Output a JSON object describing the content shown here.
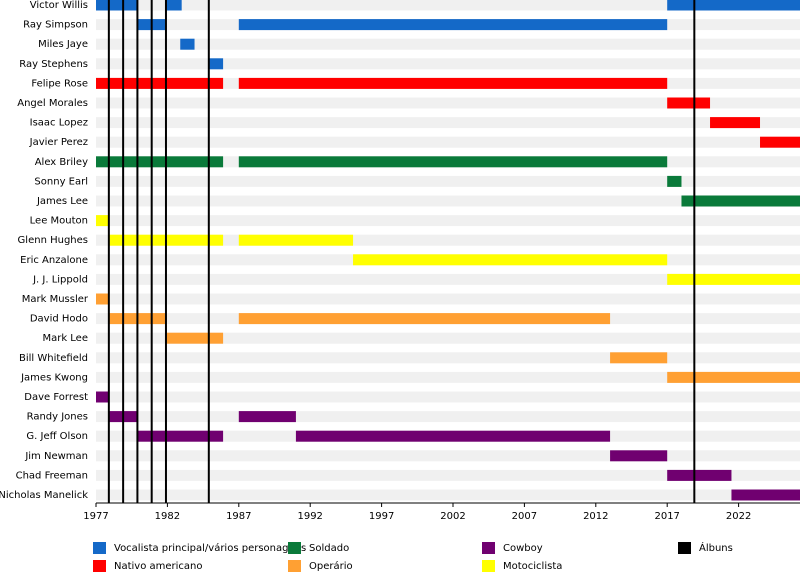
{
  "chart_data": {
    "type": "timeline",
    "xlim": [
      1977,
      2026.3
    ],
    "xticks": [
      1977,
      1982,
      1987,
      1992,
      1997,
      2002,
      2007,
      2012,
      2017,
      2022
    ],
    "series": [
      {
        "name": "Vocalista principal/vários personagens",
        "color": "#1469c8",
        "members": [
          {
            "name": "Victor Willis",
            "periods": [
              [
                1977,
                1979.9
              ],
              [
                1981.9,
                1983
              ],
              [
                2017,
                2026.3
              ]
            ]
          },
          {
            "name": "Ray Simpson",
            "periods": [
              [
                1979.9,
                1981.9
              ],
              [
                1987,
                2017
              ]
            ]
          },
          {
            "name": "Miles Jaye",
            "periods": [
              [
                1982.9,
                1983.9
              ]
            ]
          },
          {
            "name": "Ray Stephens",
            "periods": [
              [
                1984.9,
                1985.9
              ]
            ]
          }
        ]
      },
      {
        "name": "Nativo americano",
        "color": "#ff0000",
        "members": [
          {
            "name": "Felipe Rose",
            "periods": [
              [
                1977,
                1985.9
              ],
              [
                1987,
                2017
              ]
            ]
          },
          {
            "name": "Angel Morales",
            "periods": [
              [
                2017,
                2020
              ]
            ]
          },
          {
            "name": "Isaac Lopez",
            "periods": [
              [
                2020,
                2023.5
              ]
            ]
          },
          {
            "name": "Javier Perez",
            "periods": [
              [
                2023.5,
                2026.3
              ]
            ]
          }
        ]
      },
      {
        "name": "Soldado",
        "color": "#0a7a3a",
        "members": [
          {
            "name": "Alex Briley",
            "periods": [
              [
                1977,
                1985.9
              ],
              [
                1987,
                2017
              ]
            ]
          },
          {
            "name": "Sonny Earl",
            "periods": [
              [
                2017,
                2018
              ]
            ]
          },
          {
            "name": "James Lee",
            "periods": [
              [
                2018,
                2026.3
              ]
            ]
          }
        ]
      },
      {
        "name": "Motociclista",
        "color": "#ffff00",
        "members": [
          {
            "name": "Lee Mouton",
            "periods": [
              [
                1977,
                1977.9
              ]
            ]
          },
          {
            "name": "Glenn Hughes",
            "periods": [
              [
                1977.9,
                1985.9
              ],
              [
                1987,
                1995
              ]
            ]
          },
          {
            "name": "Eric Anzalone",
            "periods": [
              [
                1995,
                2017
              ]
            ]
          },
          {
            "name": "J. J. Lippold",
            "periods": [
              [
                2017,
                2026.3
              ]
            ]
          }
        ]
      },
      {
        "name": "Operário",
        "color": "#ffa033",
        "members": [
          {
            "name": "Mark Mussler",
            "periods": [
              [
                1977,
                1977.9
              ]
            ]
          },
          {
            "name": "David Hodo",
            "periods": [
              [
                1977.9,
                1981.9
              ],
              [
                1987,
                2013
              ]
            ]
          },
          {
            "name": "Mark Lee",
            "periods": [
              [
                1981.9,
                1985.9
              ]
            ]
          },
          {
            "name": "Bill Whitefield",
            "periods": [
              [
                2013,
                2017
              ]
            ]
          },
          {
            "name": "James Kwong",
            "periods": [
              [
                2017,
                2026.3
              ]
            ]
          }
        ]
      },
      {
        "name": "Cowboy",
        "color": "#700070",
        "members": [
          {
            "name": "Dave Forrest",
            "periods": [
              [
                1977,
                1977.9
              ]
            ]
          },
          {
            "name": "Randy Jones",
            "periods": [
              [
                1977.9,
                1979.9
              ],
              [
                1987,
                1991
              ]
            ]
          },
          {
            "name": "G. Jeff Olson",
            "periods": [
              [
                1979.9,
                1985.9
              ],
              [
                1991,
                2013
              ]
            ]
          },
          {
            "name": "Jim Newman",
            "periods": [
              [
                2013,
                2017
              ]
            ]
          },
          {
            "name": "Chad Freeman",
            "periods": [
              [
                2017,
                2021.5
              ]
            ]
          },
          {
            "name": "Nicholas Manelick",
            "periods": [
              [
                2021.5,
                2026.3
              ]
            ]
          }
        ]
      }
    ],
    "albums": {
      "name": "Álbuns",
      "color": "#000000",
      "values": [
        1977.9,
        1978.9,
        1979.9,
        1980.9,
        1981.9,
        1984.9,
        2018.9
      ]
    }
  }
}
